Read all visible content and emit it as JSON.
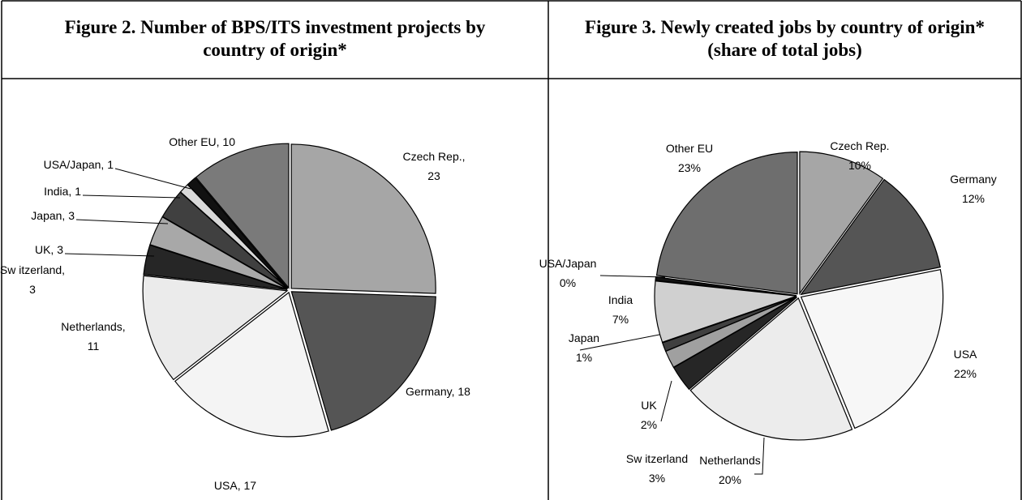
{
  "chart_data": [
    {
      "type": "pie",
      "title": "Figure 2. Number of BPS/ITS investment projects by country of origin*",
      "values": [
        23,
        18,
        17,
        11,
        3,
        3,
        3,
        1,
        1,
        10
      ],
      "value_labels": [
        "Czech Rep.,\n23",
        "Germany, 18",
        "USA, 17",
        "Netherlands,\n11",
        "Sw itzerland,\n3",
        "UK, 3",
        "Japan, 3",
        "India, 1",
        "USA/Japan, 1",
        "Other EU, 10"
      ],
      "colors": [
        "#a6a6a6",
        "#555555",
        "#f4f4f4",
        "#ebebeb",
        "#262626",
        "#a8a8a8",
        "#404040",
        "#d9d9d9",
        "#111111",
        "#7a7a7a"
      ]
    },
    {
      "type": "pie",
      "title": "Figure 3. Newly created jobs by country of origin* (share of total jobs)",
      "values": [
        10,
        12,
        22,
        20,
        3,
        2,
        1,
        7,
        0.4,
        23
      ],
      "value_labels": [
        "Czech Rep.\n10%",
        "Germany\n12%",
        "USA\n22%",
        "Netherlands\n20%",
        "Sw itzerland\n3%",
        "UK\n2%",
        "Japan\n1%",
        "India\n7%",
        "USA/Japan\n0%",
        "Other EU\n23%"
      ],
      "colors": [
        "#a6a6a6",
        "#555555",
        "#f7f7f7",
        "#ececec",
        "#262626",
        "#a0a0a0",
        "#404040",
        "#d0d0d0",
        "#111111",
        "#6e6e6e"
      ]
    }
  ]
}
